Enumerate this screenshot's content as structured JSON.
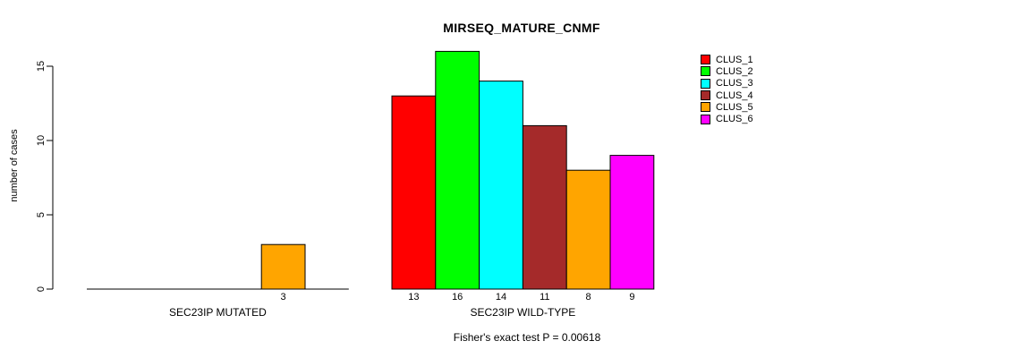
{
  "chart_data": {
    "type": "bar",
    "title": "MIRSEQ_MATURE_CNMF",
    "ylabel": "number of cases",
    "xlabel": "",
    "ylim": [
      0,
      16.8
    ],
    "yticks": [
      0,
      5,
      10,
      15
    ],
    "grid": false,
    "legend_position": "top-right",
    "categories": [
      "SEC23IP MUTATED",
      "SEC23IP WILD-TYPE"
    ],
    "series": [
      {
        "name": "CLUS_1",
        "color": "#FF0000",
        "values": [
          0,
          13
        ]
      },
      {
        "name": "CLUS_2",
        "color": "#00FF00",
        "values": [
          0,
          16
        ]
      },
      {
        "name": "CLUS_3",
        "color": "#00FFFF",
        "values": [
          0,
          14
        ]
      },
      {
        "name": "CLUS_4",
        "color": "#A52A2A",
        "values": [
          0,
          11
        ]
      },
      {
        "name": "CLUS_5",
        "color": "#FFA500",
        "values": [
          3,
          8
        ]
      },
      {
        "name": "CLUS_6",
        "color": "#FF00FF",
        "values": [
          0,
          9
        ]
      }
    ],
    "bar_value_labels": [
      [
        "",
        "",
        "",
        "",
        "3",
        ""
      ],
      [
        "13",
        "16",
        "14",
        "11",
        "8",
        "9"
      ]
    ],
    "annotation": "Fisher's exact test P = 0.00618",
    "axis_color": "#000000",
    "bar_border_color": "#000000"
  }
}
